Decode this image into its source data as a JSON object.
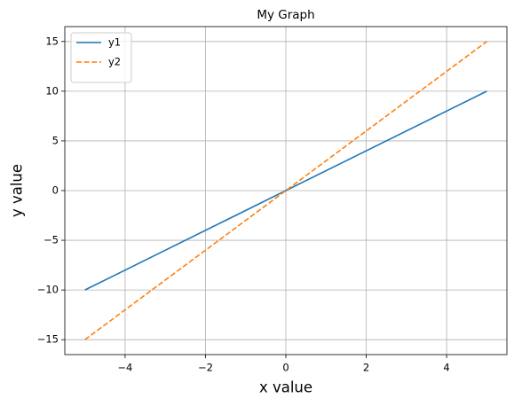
{
  "chart_data": {
    "type": "line",
    "title": "My Graph",
    "xlabel": "x value",
    "ylabel": "y value",
    "x": [
      -5,
      5
    ],
    "series": [
      {
        "name": "y1",
        "color": "#1f77b4",
        "linestyle": "solid",
        "values": [
          -10,
          10
        ]
      },
      {
        "name": "y2",
        "color": "#ff7f0e",
        "linestyle": "dashed",
        "values": [
          -15,
          15
        ]
      }
    ],
    "xlim": [
      -5.5,
      5.5
    ],
    "ylim": [
      -16.5,
      16.5
    ],
    "xticks": [
      {
        "value": -4,
        "label": "−4"
      },
      {
        "value": -2,
        "label": "−2"
      },
      0,
      2,
      4
    ],
    "yticks": [
      {
        "value": -15,
        "label": "−15"
      },
      {
        "value": -10,
        "label": "−10"
      },
      {
        "value": -5,
        "label": "−5"
      },
      0,
      5,
      10,
      15
    ],
    "grid": true,
    "legend": "upper left"
  }
}
